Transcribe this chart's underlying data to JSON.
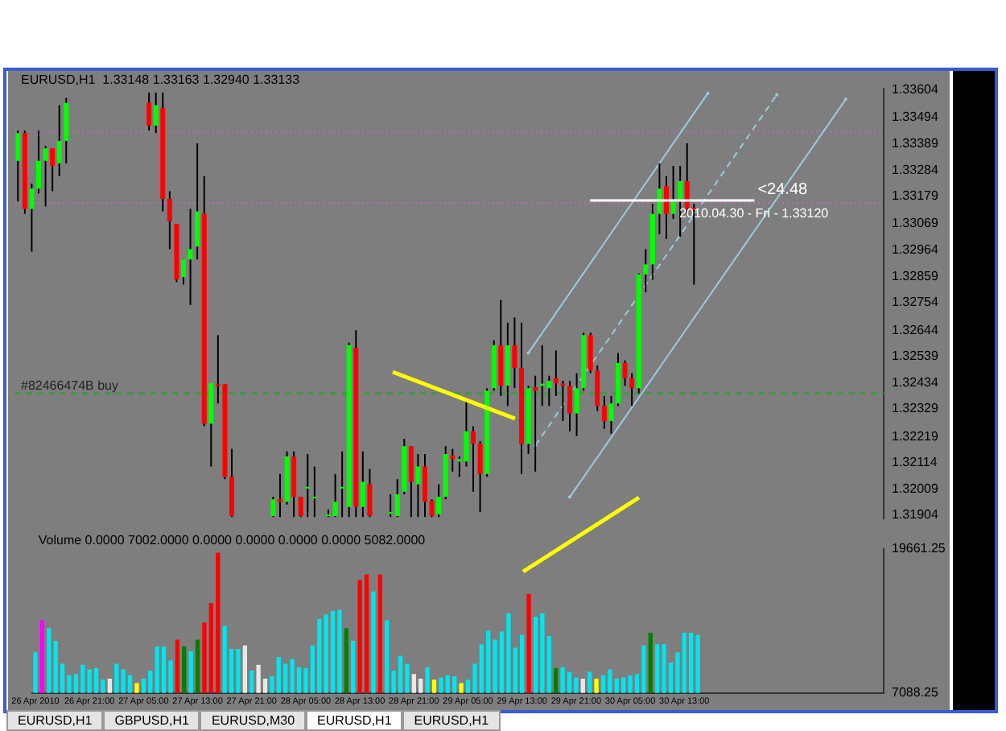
{
  "chart_data": [
    {
      "type": "candlestick",
      "title": "EURUSD,H1  1.33148 1.33163 1.32940 1.33133",
      "tick_labels": "y",
      "grid": false,
      "legend": false,
      "categories": [
        null,
        null,
        null,
        null,
        null,
        null,
        null,
        null,
        null,
        null,
        null,
        null,
        null,
        null,
        null,
        null,
        null,
        null,
        null,
        null,
        null,
        null,
        null,
        null,
        null,
        null,
        null,
        null,
        null,
        null,
        null,
        null,
        null,
        null,
        null,
        null,
        null,
        null,
        null,
        null,
        null,
        null,
        null,
        null,
        null,
        null,
        null,
        null,
        null,
        null,
        null,
        null,
        null,
        null,
        null,
        null,
        null,
        null,
        null,
        null,
        null,
        null,
        null,
        null,
        null,
        null,
        null,
        null,
        null,
        null,
        null,
        null,
        null,
        null,
        null,
        null,
        null,
        null,
        null,
        null,
        null,
        null,
        null,
        null,
        null,
        null,
        null,
        null,
        null,
        null,
        null,
        null,
        null,
        null,
        null,
        null,
        null,
        null,
        null,
        null,
        null,
        null,
        null,
        null,
        null,
        null,
        null,
        null,
        null,
        null,
        null,
        null,
        null,
        null,
        null,
        null,
        null,
        null,
        null,
        null,
        null,
        null,
        null,
        null,
        null,
        null
      ],
      "colors": [
        "#00ff00",
        "#ff0000",
        "#00ff00",
        "#00ff00",
        "#00ff00",
        "#ff0000",
        "#00ff00",
        "#00ff00",
        null,
        null,
        null,
        null,
        null,
        null,
        null,
        null,
        null,
        null,
        null,
        "#ff0000",
        "#00ff00",
        "#ff0000",
        "#ff0000",
        "#ff0000",
        "#00ff00",
        "#00ff00",
        "#00ff00",
        "#ff0000",
        "#00ff00",
        "#ff0000",
        "#ff0000",
        "#ff0000",
        null,
        null,
        null,
        null,
        null,
        "#00ff00",
        "#ff0000",
        "#00ff00",
        "#ff0000",
        "#ff0000",
        "#00ff00",
        "#00ff00",
        null,
        "#00ff00",
        "#00ff00",
        "#00ff00",
        "#00ff00",
        "#ff0000",
        "#00ff00",
        "#ff0000",
        null,
        null,
        "#00ff00",
        "#00ff00",
        "#00ff00",
        "#ff0000",
        "#00ff00",
        "#ff0000",
        "#ff0000",
        "#00ff00",
        "#00ff00",
        "#ff0000",
        "#00ff00",
        "#00ff00",
        "#ff0000",
        "#ff0000",
        "#00ff00",
        "#00ff00",
        "#ff0000",
        "#00ff00",
        "#ff0000",
        "#ff0000",
        "#00ff00",
        "#ff0000",
        "#00ff00",
        "#00ff00",
        "#ff0000",
        "#ff0000",
        "#ff0000",
        "#00ff00",
        "#00ff00",
        "#ff0000",
        "#ff0000",
        "#ff0000",
        "#00ff00",
        "#00ff00",
        "#ff0000",
        "#ff0000",
        "#00ff00",
        "#00ff00",
        "#00ff00",
        "#00ff00",
        "#ff0000",
        "#00ff00",
        "#00ff00",
        "#ff0000",
        "#ff0000",
        null,
        null,
        null,
        null,
        null,
        null,
        null,
        null,
        null,
        null,
        null,
        null,
        null,
        null,
        null,
        null,
        null,
        null,
        null,
        null,
        null,
        null,
        null,
        null,
        null,
        null,
        null
      ],
      "ohlc": [
        [
          1.33321,
          1.33442,
          1.33159,
          1.33432
        ],
        [
          1.33432,
          1.33442,
          1.33109,
          1.33129
        ],
        [
          1.33129,
          1.3323,
          1.32958,
          1.3321
        ],
        [
          1.3321,
          1.33442,
          1.3319,
          1.33321
        ],
        [
          1.33321,
          1.33381,
          1.33139,
          1.33371
        ],
        [
          1.33371,
          1.33371,
          1.332,
          1.33301
        ],
        [
          1.33311,
          1.33543,
          1.3326,
          1.33401
        ],
        [
          1.33401,
          1.33573,
          1.33311,
          1.33553
        ],
        null,
        null,
        null,
        null,
        null,
        null,
        null,
        null,
        null,
        null,
        null,
        [
          1.33553,
          1.33594,
          1.33442,
          1.33462
        ],
        [
          1.33462,
          1.33594,
          1.33432,
          1.33543
        ],
        [
          1.33533,
          1.33594,
          1.33119,
          1.33169
        ],
        [
          1.33169,
          1.332,
          1.32968,
          1.33079
        ],
        [
          1.33069,
          1.33069,
          1.32836,
          1.32846
        ],
        [
          1.32857,
          1.32927,
          1.32826,
          1.32927
        ],
        [
          1.32927,
          1.33129,
          1.32745,
          1.32968
        ],
        [
          1.32978,
          1.33391,
          1.32927,
          1.33119
        ],
        [
          1.33109,
          1.3326,
          1.3226,
          1.3227
        ],
        [
          1.3227,
          1.32432,
          1.32099,
          1.32432
        ],
        [
          1.32428,
          1.32624,
          1.32351,
          1.32422
        ],
        [
          1.32428,
          1.32428,
          1.32048,
          1.32058
        ],
        [
          1.32058,
          1.3217,
          1.31897,
          1.31901
        ],
        null,
        null,
        null,
        null,
        null,
        [
          1.31901,
          1.31978,
          1.31897,
          1.31968
        ],
        [
          1.31968,
          1.32069,
          1.31897,
          1.31958
        ],
        [
          1.31958,
          1.32159,
          1.31947,
          1.32139
        ],
        [
          1.32139,
          1.32159,
          1.31897,
          1.31978
        ],
        [
          1.31978,
          1.31978,
          1.31897,
          1.31901
        ],
        [
          1.32018,
          1.32149,
          1.31897,
          1.32018
        ],
        [
          1.31978,
          1.32099,
          1.31897,
          1.31978
        ],
        null,
        [
          1.31907,
          1.31927,
          1.31897,
          1.31907
        ],
        [
          1.31901,
          1.32069,
          1.31897,
          1.31958
        ],
        [
          1.32018,
          1.32159,
          1.31897,
          1.32018
        ],
        [
          1.31937,
          1.32594,
          1.31897,
          1.32584
        ],
        [
          1.32574,
          1.32644,
          1.31897,
          1.31937
        ],
        [
          1.31937,
          1.32159,
          1.31897,
          1.32038
        ],
        [
          1.32028,
          1.32089,
          1.31897,
          1.31901
        ],
        null,
        null,
        [
          1.31917,
          1.31988,
          1.31897,
          1.31917
        ],
        [
          1.31901,
          1.32048,
          1.31897,
          1.31988
        ],
        [
          1.31998,
          1.3221,
          1.31988,
          1.3218
        ],
        [
          1.3218,
          1.3218,
          1.31897,
          1.32038
        ],
        [
          1.32028,
          1.32149,
          1.31897,
          1.32099
        ],
        [
          1.32099,
          1.32149,
          1.31897,
          1.31958
        ],
        [
          1.31962,
          1.31968,
          1.31897,
          1.31901
        ],
        [
          1.31907,
          1.32028,
          1.31897,
          1.31978
        ],
        [
          1.31978,
          1.3218,
          1.31968,
          1.32149
        ],
        [
          1.32143,
          1.3217,
          1.32079,
          1.32129
        ],
        [
          1.32119,
          1.32139,
          1.32058,
          1.32129
        ],
        [
          1.32119,
          1.32365,
          1.32099,
          1.3224
        ],
        [
          1.3224,
          1.3226,
          1.31998,
          1.3219
        ],
        [
          1.3219,
          1.322,
          1.31917,
          1.32069
        ],
        [
          1.32069,
          1.32412,
          1.32058,
          1.32402
        ],
        [
          1.32412,
          1.32604,
          1.32402,
          1.32584
        ],
        [
          1.32584,
          1.32765,
          1.32381,
          1.32422
        ],
        [
          1.32422,
          1.32674,
          1.32341,
          1.32584
        ],
        [
          1.32584,
          1.32695,
          1.32412,
          1.32493
        ],
        [
          1.32493,
          1.32674,
          1.32069,
          1.3219
        ],
        [
          1.3219,
          1.32422,
          1.32149,
          1.32412
        ],
        [
          1.32416,
          1.32462,
          1.32079,
          1.32402
        ],
        [
          1.32422,
          1.32584,
          1.32341,
          1.3243
        ],
        [
          1.32412,
          1.32462,
          1.32341,
          1.32442
        ],
        [
          1.32452,
          1.32563,
          1.32381,
          1.32432
        ],
        [
          1.3243,
          1.32442,
          1.32281,
          1.32422
        ],
        [
          1.32422,
          1.32442,
          1.3224,
          1.32311
        ],
        [
          1.32311,
          1.32472,
          1.3222,
          1.32412
        ],
        [
          1.32412,
          1.32634,
          1.32402,
          1.32624
        ],
        [
          1.32624,
          1.32634,
          1.32472,
          1.32483
        ],
        [
          1.32483,
          1.32503,
          1.32321,
          1.32341
        ],
        [
          1.32341,
          1.32381,
          1.3225,
          1.32281
        ],
        [
          1.32281,
          1.32381,
          1.3223,
          1.32351
        ],
        [
          1.32351,
          1.32553,
          1.32341,
          1.32513
        ],
        [
          1.32513,
          1.32523,
          1.32422,
          1.32452
        ],
        [
          1.32452,
          1.32472,
          1.32341,
          1.32412
        ],
        [
          1.32412,
          1.32871,
          1.32391,
          1.32867
        ],
        [
          1.32867,
          1.32968,
          1.32796,
          1.32907
        ],
        [
          1.32907,
          1.33149,
          1.32846,
          1.33109
        ],
        [
          1.33109,
          1.33311,
          1.33028,
          1.3321
        ],
        [
          1.3322,
          1.3326,
          1.33008,
          1.33109
        ],
        [
          1.33109,
          1.33301,
          1.33089,
          1.33159
        ],
        [
          1.33159,
          1.33301,
          1.33018,
          1.3324
        ],
        [
          1.3324,
          1.33391,
          1.33109,
          1.33129
        ],
        [
          1.33134,
          1.33149,
          1.32826,
          1.33125
        ],
        null,
        null,
        null,
        null,
        null,
        null,
        null,
        null,
        null,
        null,
        null,
        null,
        null,
        null,
        null,
        null,
        null,
        null,
        null,
        null,
        null,
        null,
        null,
        null,
        null,
        null,
        null
      ],
      "series": [
        {
          "type": "line",
          "color": "#9ccbe0",
          "line_style": "solid",
          "values": [
            null,
            null,
            null,
            null,
            null,
            null,
            null,
            null,
            null,
            null,
            null,
            null,
            null,
            null,
            null,
            null,
            null,
            null,
            null,
            null,
            null,
            null,
            null,
            null,
            null,
            null,
            null,
            null,
            null,
            null,
            null,
            null,
            null,
            null,
            null,
            null,
            null,
            null,
            null,
            null,
            null,
            null,
            null,
            null,
            null,
            null,
            null,
            null,
            null,
            null,
            null,
            null,
            null,
            null,
            null,
            null,
            null,
            null,
            null,
            null,
            null,
            null,
            null,
            null,
            null,
            null,
            null,
            null,
            null,
            null,
            null,
            null,
            null,
            null,
            1.32553,
            null,
            null,
            null,
            null,
            null,
            null,
            null,
            null,
            null,
            null,
            null,
            null,
            null,
            null,
            null,
            null,
            null,
            null,
            null,
            null,
            null,
            null,
            null,
            null,
            null,
            1.33591,
            null,
            null,
            null,
            null,
            null,
            null,
            null,
            null,
            null,
            null,
            null,
            null,
            null,
            null,
            null,
            null,
            null,
            null,
            null,
            null,
            null,
            null,
            null,
            null,
            null
          ]
        },
        {
          "type": "line",
          "color": "#9ccbe0",
          "line_style": "dashed",
          "values": [
            null,
            null,
            null,
            null,
            null,
            null,
            null,
            null,
            null,
            null,
            null,
            null,
            null,
            null,
            null,
            null,
            null,
            null,
            null,
            null,
            null,
            null,
            null,
            null,
            null,
            null,
            null,
            null,
            null,
            null,
            null,
            null,
            null,
            null,
            null,
            null,
            null,
            null,
            null,
            null,
            null,
            null,
            null,
            null,
            null,
            null,
            null,
            null,
            null,
            null,
            null,
            null,
            null,
            null,
            null,
            null,
            null,
            null,
            null,
            null,
            null,
            null,
            null,
            null,
            null,
            null,
            null,
            null,
            null,
            null,
            null,
            null,
            null,
            null,
            null,
            1.32183,
            null,
            null,
            null,
            null,
            null,
            null,
            null,
            null,
            null,
            null,
            null,
            null,
            null,
            null,
            null,
            null,
            null,
            null,
            null,
            null,
            null,
            null,
            null,
            null,
            null,
            null,
            null,
            null,
            null,
            null,
            null,
            null,
            null,
            null,
            1.33585,
            null,
            null,
            null,
            null,
            null,
            null,
            null,
            null,
            null,
            null,
            null,
            null,
            null,
            null,
            null
          ]
        },
        {
          "type": "line",
          "color": "#9ccbe0",
          "line_style": "solid",
          "values": [
            null,
            null,
            null,
            null,
            null,
            null,
            null,
            null,
            null,
            null,
            null,
            null,
            null,
            null,
            null,
            null,
            null,
            null,
            null,
            null,
            null,
            null,
            null,
            null,
            null,
            null,
            null,
            null,
            null,
            null,
            null,
            null,
            null,
            null,
            null,
            null,
            null,
            null,
            null,
            null,
            null,
            null,
            null,
            null,
            null,
            null,
            null,
            null,
            null,
            null,
            null,
            null,
            null,
            null,
            null,
            null,
            null,
            null,
            null,
            null,
            null,
            null,
            null,
            null,
            null,
            null,
            null,
            null,
            null,
            null,
            null,
            null,
            null,
            null,
            null,
            null,
            null,
            null,
            null,
            null,
            1.31977,
            null,
            null,
            null,
            null,
            null,
            null,
            null,
            null,
            null,
            null,
            null,
            null,
            null,
            null,
            null,
            null,
            null,
            null,
            null,
            null,
            null,
            null,
            null,
            null,
            null,
            null,
            null,
            null,
            null,
            null,
            null,
            null,
            null,
            null,
            null,
            null,
            null,
            null,
            null,
            1.33567,
            null,
            null,
            null,
            null,
            null
          ]
        }
      ],
      "ylim": [
        1.3189,
        1.3361
      ],
      "yticks": [
        1.31904,
        1.32009,
        1.32114,
        1.32219,
        1.32329,
        1.32434,
        1.32539,
        1.32644,
        1.32754,
        1.32859,
        1.32964,
        1.33069,
        1.33179,
        1.33284,
        1.33389,
        1.33494,
        1.33604
      ],
      "ref_lines": [
        {
          "axis": "y",
          "value": 1.32392,
          "label": "#82466474B buy",
          "color": "#2f9f2f",
          "line_style": "dashed"
        },
        {
          "axis": "y",
          "value": 1.33438,
          "color": "#b070b0",
          "line_style": "dotted"
        },
        {
          "axis": "y",
          "value": 1.33153,
          "color": "#b070b0",
          "line_style": "dotted"
        }
      ],
      "annotations": [
        "<24.48",
        "2010.04.30 - Fri - 1.33120"
      ]
    },
    {
      "type": "bar",
      "title": "Volume 0.0000 7002.0000 0.0000 0.0000 0.0000 0.0000 5082.0000",
      "grid": false,
      "legend": false,
      "categories": [
        "26 Apr 2010",
        null,
        null,
        null,
        null,
        null,
        null,
        null,
        "26 Apr 21:00",
        null,
        null,
        null,
        null,
        null,
        null,
        null,
        "27 Apr 05:00",
        null,
        null,
        null,
        null,
        null,
        null,
        null,
        "27 Apr 13:00",
        null,
        null,
        null,
        null,
        null,
        null,
        null,
        "27 Apr 21:00",
        null,
        null,
        null,
        null,
        null,
        null,
        null,
        "28 Apr 05:00",
        null,
        null,
        null,
        null,
        null,
        null,
        null,
        "28 Apr 13:00",
        null,
        null,
        null,
        null,
        null,
        null,
        null,
        "28 Apr 21:00",
        null,
        null,
        null,
        null,
        null,
        null,
        null,
        "29 Apr 05:00",
        null,
        null,
        null,
        null,
        null,
        null,
        null,
        "29 Apr 13:00",
        null,
        null,
        null,
        null,
        null,
        null,
        null,
        "29 Apr 21:00",
        null,
        null,
        null,
        null,
        null,
        null,
        null,
        "30 Apr 05:00",
        null,
        null,
        null,
        null,
        null,
        null,
        null,
        "30 Apr 13:00",
        null,
        null,
        null,
        null,
        null,
        null,
        null,
        null,
        null,
        null,
        null,
        null,
        null,
        null,
        null,
        null,
        null,
        null,
        null,
        null,
        null,
        null,
        null,
        null,
        null,
        null,
        null,
        null,
        null
      ],
      "values": [
        10600,
        13400,
        12700,
        11600,
        9600,
        8600,
        8700,
        9500,
        9100,
        9200,
        8200,
        8300,
        9600,
        9100,
        8600,
        7900,
        8300,
        9000,
        11100,
        11100,
        9900,
        11700,
        11100,
        10700,
        11700,
        13200,
        14900,
        19300,
        12900,
        10900,
        10900,
        11200,
        9000,
        9500,
        8300,
        8500,
        10200,
        9600,
        10000,
        9300,
        9200,
        11200,
        13500,
        13900,
        14200,
        14300,
        12700,
        11600,
        16900,
        17400,
        15900,
        17400,
        13400,
        9000,
        10300,
        9600,
        8700,
        8300,
        9300,
        8200,
        8400,
        8600,
        8500,
        7900,
        8200,
        9600,
        11300,
        12500,
        11700,
        12400,
        14000,
        11000,
        12100,
        15700,
        13700,
        14000,
        12000,
        9200,
        9300,
        8900,
        8400,
        8300,
        8900,
        8300,
        8600,
        9100,
        8300,
        8400,
        8600,
        8700,
        11200,
        12300,
        11300,
        11300,
        9700,
        10600,
        12300,
        12300,
        12100,
        null,
        null,
        null,
        null,
        null,
        null,
        null,
        null,
        null,
        null,
        null,
        null,
        null,
        null,
        null,
        null,
        null,
        null,
        null,
        null,
        null,
        null,
        null,
        null,
        null,
        null,
        null
      ],
      "colors": [
        "#00e5ee",
        "#ff00ff",
        "#00e5ee",
        "#00e5ee",
        "#00e5ee",
        "#00e5ee",
        "#00e5ee",
        "#00e5ee",
        "#00e5ee",
        "#00e5ee",
        "#00e5ee",
        "#e8e8e8",
        "#00e5ee",
        "#00e5ee",
        "#00e5ee",
        "#ffff00",
        "#00e5ee",
        "#00e5ee",
        "#00e5ee",
        "#00e5ee",
        "#00e5ee",
        "#ff0000",
        "#008000",
        "#00e5ee",
        "#008000",
        "#ff0000",
        "#ff0000",
        "#ff0000",
        "#00e5ee",
        "#00e5ee",
        "#00e5ee",
        "#e8e8e8",
        "#00e5ee",
        "#e8e8e8",
        "#e8e8e8",
        "#00e5ee",
        "#00e5ee",
        "#00e5ee",
        "#00e5ee",
        "#00e5ee",
        "#00e5ee",
        "#00e5ee",
        "#00e5ee",
        "#00e5ee",
        "#00e5ee",
        "#00e5ee",
        "#008000",
        "#00e5ee",
        "#ff0000",
        "#ff0000",
        "#00e5ee",
        "#ff0000",
        "#00e5ee",
        "#00e5ee",
        "#00e5ee",
        "#00e5ee",
        "#e8e8e8",
        "#e8e8e8",
        "#00e5ee",
        "#ffff00",
        "#00e5ee",
        "#00e5ee",
        "#00e5ee",
        "#ffff00",
        "#00e5ee",
        "#00e5ee",
        "#00e5ee",
        "#00e5ee",
        "#00e5ee",
        "#00e5ee",
        "#00e5ee",
        "#00e5ee",
        "#00e5ee",
        "#ff0000",
        "#00e5ee",
        "#00e5ee",
        "#00e5ee",
        "#008000",
        "#00e5ee",
        "#00e5ee",
        "#00e5ee",
        "#e8e8e8",
        "#00e5ee",
        "#ffff00",
        "#00e5ee",
        "#00e5ee",
        "#00e5ee",
        "#00e5ee",
        "#00e5ee",
        "#00e5ee",
        "#00e5ee",
        "#008000",
        "#00e5ee",
        "#00e5ee",
        "#00e5ee",
        "#00e5ee",
        "#00e5ee",
        "#00e5ee",
        "#00e5ee",
        null,
        null,
        null,
        null,
        null,
        null,
        null,
        null,
        null,
        null,
        null,
        null,
        null,
        null,
        null,
        null,
        null,
        null,
        null,
        null,
        null,
        null,
        null,
        null,
        null,
        null,
        null
      ],
      "ylim": [
        7088.25,
        19661.25
      ],
      "yticks": [
        7088.25,
        19661.25
      ],
      "annotations": [
        "EURUSD,H1",
        "GBPUSD,H1",
        "EURUSD,M30",
        "EURUSD,H1",
        "EURUSD,H1"
      ]
    }
  ]
}
